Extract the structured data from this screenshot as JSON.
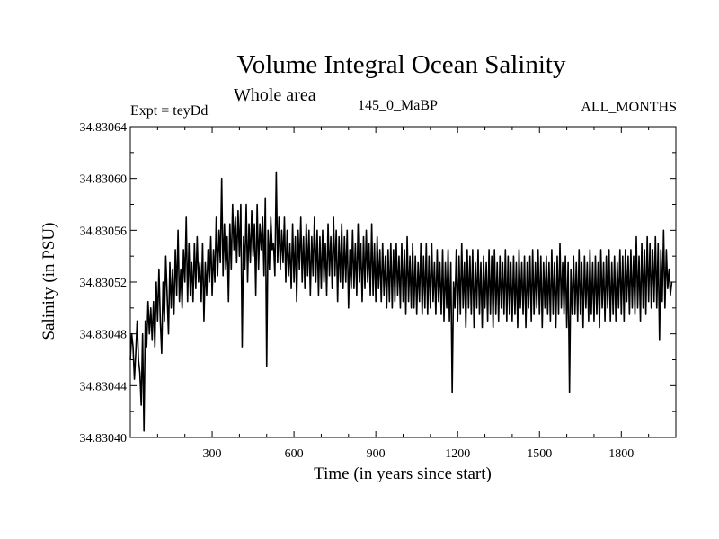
{
  "chart_data": {
    "type": "line",
    "title": "Volume Integral Ocean Salinity",
    "subtitle": "Whole area",
    "annotations": {
      "left": "Expt = teyDd",
      "center": "145_0_MaBP",
      "right": "ALL_MONTHS"
    },
    "xlabel": "Time (in years since start)",
    "ylabel": "Salinity (in PSU)",
    "xlim": [
      0,
      2000
    ],
    "ylim": [
      34.8304,
      34.83064
    ],
    "xticks": [
      300,
      600,
      900,
      1200,
      1500,
      1800
    ],
    "xtick_labels": [
      "300",
      "600",
      "900",
      "1200",
      "1500",
      "1800"
    ],
    "yticks": [
      34.8304,
      34.83044,
      34.83048,
      34.83052,
      34.83056,
      34.8306,
      34.83064
    ],
    "ytick_labels": [
      "34.83040",
      "34.83044",
      "34.83048",
      "34.83052",
      "34.83056",
      "34.83060",
      "34.83064"
    ],
    "series": [
      {
        "name": "Salinity",
        "color": "#000000",
        "x_step": 5,
        "values": [
          34.83046,
          34.83048,
          34.83047,
          34.830445,
          34.830465,
          34.83049,
          34.83046,
          34.83045,
          34.830425,
          34.83048,
          34.830405,
          34.83049,
          34.83047,
          34.830505,
          34.83048,
          34.8305,
          34.830475,
          34.830505,
          34.83047,
          34.83052,
          34.83049,
          34.83053,
          34.83049,
          34.830465,
          34.83052,
          34.83049,
          34.83054,
          34.83051,
          34.83048,
          34.830535,
          34.8305,
          34.83053,
          34.830495,
          34.830545,
          34.83051,
          34.83056,
          34.830505,
          34.83053,
          34.8305,
          34.830545,
          34.83052,
          34.83057,
          34.830505,
          34.83055,
          34.83051,
          34.830535,
          34.830505,
          34.83055,
          34.830515,
          34.830555,
          34.83052,
          34.830535,
          34.830505,
          34.83055,
          34.83049,
          34.830535,
          34.83051,
          34.830545,
          34.83052,
          34.830555,
          34.83051,
          34.830545,
          34.83052,
          34.83057,
          34.830525,
          34.83056,
          34.830535,
          34.8306,
          34.830525,
          34.830565,
          34.83053,
          34.830555,
          34.830505,
          34.830565,
          34.83053,
          34.83058,
          34.830545,
          34.83057,
          34.830535,
          34.830575,
          34.83054,
          34.83058,
          34.83047,
          34.830555,
          34.83053,
          34.83058,
          34.83052,
          34.830565,
          34.830535,
          34.830575,
          34.83054,
          34.830565,
          34.83051,
          34.83058,
          34.83053,
          34.830565,
          34.830545,
          34.83057,
          34.830525,
          34.830585,
          34.830455,
          34.83056,
          34.83053,
          34.83057,
          34.830545,
          34.83055,
          34.830525,
          34.830605,
          34.830535,
          34.83057,
          34.83053,
          34.83056,
          34.830535,
          34.83057,
          34.83052,
          34.83056,
          34.830525,
          34.83055,
          34.830515,
          34.830565,
          34.83052,
          34.830555,
          34.830505,
          34.83056,
          34.83053,
          34.83057,
          34.83052,
          34.830555,
          34.830515,
          34.830565,
          34.830525,
          34.83056,
          34.83051,
          34.830555,
          34.830525,
          34.83057,
          34.83052,
          34.83056,
          34.83051,
          34.830555,
          34.830515,
          34.83056,
          34.83052,
          34.83055,
          34.83051,
          34.830565,
          34.830525,
          34.830555,
          34.830515,
          34.83057,
          34.830525,
          34.83056,
          34.830505,
          34.830555,
          34.83052,
          34.830565,
          34.830515,
          34.830555,
          34.83052,
          34.83056,
          34.8305,
          34.830545,
          34.830515,
          34.83056,
          34.830515,
          34.83055,
          34.83051,
          34.830565,
          34.83052,
          34.83055,
          34.830505,
          34.830555,
          34.830515,
          34.83056,
          34.83052,
          34.83055,
          34.83051,
          34.830565,
          34.83051,
          34.83055,
          34.830505,
          34.830555,
          34.830515,
          34.830545,
          34.830505,
          34.83055,
          34.83051,
          34.83054,
          34.8305,
          34.830545,
          34.830505,
          34.83055,
          34.8305,
          34.830545,
          34.830505,
          34.83055,
          34.83051,
          34.83054,
          34.8305,
          34.83055,
          34.830505,
          34.830545,
          34.830495,
          34.830555,
          34.830505,
          34.83054,
          34.8305,
          34.83055,
          34.8305,
          34.83054,
          34.830495,
          34.830535,
          34.830505,
          34.83055,
          34.830495,
          34.83054,
          34.8305,
          34.83055,
          34.830495,
          34.83054,
          34.8305,
          34.83055,
          34.830505,
          34.830535,
          34.830495,
          34.830545,
          34.830505,
          34.830535,
          34.830495,
          34.830545,
          34.83049,
          34.830535,
          34.8305,
          34.830545,
          34.83049,
          34.830535,
          34.830435,
          34.83052,
          34.8305,
          34.830545,
          34.83049,
          34.83054,
          34.830495,
          34.83055,
          34.8305,
          34.830535,
          34.830485,
          34.830545,
          34.8305,
          34.83054,
          34.830495,
          34.830545,
          34.830485,
          34.830535,
          34.8305,
          34.830545,
          34.830495,
          34.830535,
          34.830485,
          34.83054,
          34.8305,
          34.830535,
          34.83049,
          34.830545,
          34.830495,
          34.83054,
          34.830485,
          34.830545,
          34.830495,
          34.830535,
          34.83049,
          34.83054,
          34.8305,
          34.830535,
          34.830495,
          34.830545,
          34.83049,
          34.83054,
          34.830495,
          34.830535,
          34.83049,
          34.83054,
          34.830495,
          34.830535,
          34.830485,
          34.830545,
          34.8305,
          34.830535,
          34.830495,
          34.83054,
          34.830485,
          34.830535,
          34.8305,
          34.83054,
          34.83049,
          34.830545,
          34.830495,
          34.830535,
          34.8305,
          34.830545,
          34.830495,
          34.83054,
          34.830485,
          34.830535,
          34.8305,
          34.83054,
          34.830495,
          34.830535,
          34.83049,
          34.830545,
          34.830495,
          34.830535,
          34.830485,
          34.83054,
          34.830495,
          34.83055,
          34.8305,
          34.830535,
          34.830495,
          34.83054,
          34.830485,
          34.830535,
          34.830435,
          34.83053,
          34.830495,
          34.83054,
          34.830495,
          34.830535,
          34.83049,
          34.830545,
          34.830495,
          34.830535,
          34.830485,
          34.83054,
          34.8305,
          34.830535,
          34.83049,
          34.830545,
          34.830495,
          34.830535,
          34.83049,
          34.83054,
          34.830495,
          34.830535,
          34.830485,
          34.830545,
          34.8305,
          34.830535,
          34.83049,
          34.83054,
          34.8305,
          34.830545,
          34.83049,
          34.830535,
          34.830495,
          34.83054,
          34.83049,
          34.830535,
          34.8305,
          34.830545,
          34.830495,
          34.83054,
          34.83049,
          34.830545,
          34.830505,
          34.83054,
          34.830495,
          34.830545,
          34.8305,
          34.83054,
          34.830495,
          34.830555,
          34.8305,
          34.83054,
          34.83049,
          34.83055,
          34.8305,
          34.830545,
          34.830495,
          34.830555,
          34.830505,
          34.83055,
          34.8305,
          34.830545,
          34.830505,
          34.830555,
          34.8305,
          34.83055,
          34.830475,
          34.830545,
          34.830505,
          34.83056,
          34.8305,
          34.830545,
          34.830515,
          34.83053,
          34.83051,
          34.83052
        ]
      }
    ],
    "grid": false,
    "legend": "none"
  }
}
